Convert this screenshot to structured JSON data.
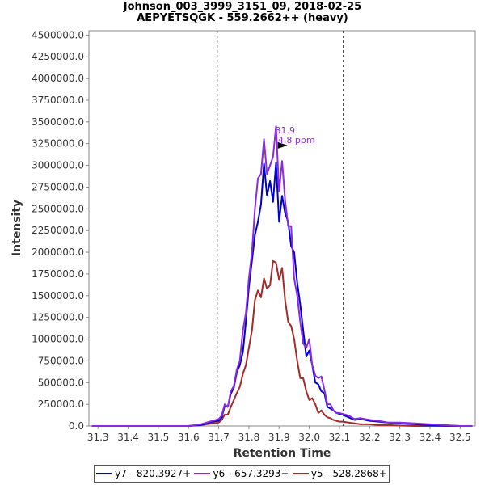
{
  "chart_data": {
    "type": "line",
    "title_line1": "Johnson_003_3999_3151_09, 2018-02-25",
    "title_line2": "AEPYETSQGK - 559.2662++ (heavy)",
    "xlabel": "Retention Time",
    "ylabel": "Intensity",
    "xlim": [
      31.27,
      32.55
    ],
    "ylim": [
      0,
      4550000
    ],
    "x_ticks": [
      31.3,
      31.4,
      31.5,
      31.6,
      31.7,
      31.8,
      31.9,
      32.0,
      32.1,
      32.2,
      32.3,
      32.4,
      32.5
    ],
    "x_tick_labels": [
      "31.3",
      "31.4",
      "31.5",
      "31.6",
      "31.7",
      "31.8",
      "31.9",
      "32.0",
      "32.1",
      "32.2",
      "32.3",
      "32.4",
      "32.5"
    ],
    "y_ticks": [
      0,
      250000,
      500000,
      750000,
      1000000,
      1250000,
      1500000,
      1750000,
      2000000,
      2250000,
      2500000,
      2750000,
      3000000,
      3250000,
      3500000,
      3750000,
      4000000,
      4250000,
      4500000
    ],
    "y_tick_labels": [
      "0.0",
      "250000.0",
      "500000.0",
      "750000.0",
      "1000000.0",
      "1250000.0",
      "1500000.0",
      "1750000.0",
      "2000000.0",
      "2250000.0",
      "2500000.0",
      "2750000.0",
      "3000000.0",
      "3250000.0",
      "3500000.0",
      "3750000.0",
      "4000000.0",
      "4250000.0",
      "4500000.0"
    ],
    "boundaries": [
      31.695,
      32.113
    ],
    "annotation": {
      "label1": "31.9",
      "label2": "4.8 ppm",
      "x": 31.92,
      "y": 3230000,
      "color": "#8a2be2"
    },
    "grid": false,
    "legend_position": "bottom",
    "series": [
      {
        "name": "y7 - 820.3927+",
        "color": "#0000cc",
        "x": [
          31.28,
          31.4,
          31.5,
          31.6,
          31.64,
          31.66,
          31.68,
          31.7,
          31.71,
          31.72,
          31.73,
          31.74,
          31.75,
          31.76,
          31.77,
          31.78,
          31.79,
          31.8,
          31.81,
          31.82,
          31.83,
          31.84,
          31.85,
          31.86,
          31.87,
          31.88,
          31.89,
          31.9,
          31.91,
          31.92,
          31.93,
          31.94,
          31.95,
          31.96,
          31.97,
          31.98,
          31.99,
          32.0,
          32.01,
          32.02,
          32.03,
          32.04,
          32.05,
          32.06,
          32.07,
          32.08,
          32.09,
          32.1,
          32.11,
          32.13,
          32.15,
          32.17,
          32.2,
          32.23,
          32.26,
          32.3,
          32.35,
          32.4,
          32.45,
          32.5,
          32.54
        ],
        "y": [
          0,
          0,
          0,
          0,
          10000,
          30000,
          50000,
          60000,
          100000,
          230000,
          220000,
          370000,
          440000,
          620000,
          700000,
          850000,
          1200000,
          1600000,
          1900000,
          2200000,
          2350000,
          2550000,
          3020000,
          2650000,
          2820000,
          2580000,
          3030000,
          2350000,
          2650000,
          2450000,
          2350000,
          2070000,
          2000000,
          1650000,
          1400000,
          1100000,
          800000,
          870000,
          700000,
          500000,
          480000,
          400000,
          380000,
          220000,
          200000,
          180000,
          150000,
          140000,
          130000,
          100000,
          70000,
          80000,
          60000,
          50000,
          40000,
          30000,
          20000,
          10000,
          5000,
          0,
          0
        ]
      },
      {
        "name": "y6 - 657.3293+",
        "color": "#8a2be2",
        "x": [
          31.28,
          31.4,
          31.5,
          31.6,
          31.64,
          31.66,
          31.68,
          31.7,
          31.71,
          31.72,
          31.73,
          31.74,
          31.75,
          31.76,
          31.77,
          31.78,
          31.79,
          31.8,
          31.81,
          31.82,
          31.83,
          31.84,
          31.85,
          31.86,
          31.87,
          31.88,
          31.89,
          31.9,
          31.91,
          31.92,
          31.93,
          31.94,
          31.95,
          31.96,
          31.97,
          31.98,
          31.99,
          32.0,
          32.01,
          32.02,
          32.03,
          32.04,
          32.05,
          32.06,
          32.07,
          32.08,
          32.09,
          32.1,
          32.11,
          32.13,
          32.15,
          32.17,
          32.2,
          32.23,
          32.26,
          32.3,
          32.35,
          32.4,
          32.45,
          32.5,
          32.54
        ],
        "y": [
          0,
          0,
          0,
          0,
          20000,
          40000,
          60000,
          80000,
          120000,
          250000,
          220000,
          400000,
          460000,
          650000,
          750000,
          1100000,
          1300000,
          1700000,
          2000000,
          2500000,
          2850000,
          2900000,
          3300000,
          2900000,
          3000000,
          3100000,
          3450000,
          2700000,
          3050000,
          2600000,
          2300000,
          2300000,
          1700000,
          1500000,
          1200000,
          950000,
          900000,
          1000000,
          700000,
          580000,
          550000,
          570000,
          420000,
          250000,
          250000,
          180000,
          150000,
          150000,
          140000,
          120000,
          80000,
          90000,
          70000,
          60000,
          40000,
          40000,
          30000,
          20000,
          10000,
          0,
          0
        ]
      },
      {
        "name": "y5 - 528.2868+",
        "color": "#a52a2a",
        "x": [
          31.28,
          31.4,
          31.5,
          31.6,
          31.64,
          31.66,
          31.68,
          31.7,
          31.71,
          31.72,
          31.73,
          31.74,
          31.75,
          31.76,
          31.77,
          31.78,
          31.79,
          31.8,
          31.81,
          31.82,
          31.83,
          31.84,
          31.85,
          31.86,
          31.87,
          31.88,
          31.89,
          31.9,
          31.91,
          31.92,
          31.93,
          31.94,
          31.95,
          31.96,
          31.97,
          31.98,
          31.99,
          32.0,
          32.01,
          32.02,
          32.03,
          32.04,
          32.05,
          32.06,
          32.07,
          32.08,
          32.09,
          32.1,
          32.11,
          32.13,
          32.15,
          32.17,
          32.2,
          32.23,
          32.26,
          32.3,
          32.35,
          32.4,
          32.45,
          32.5,
          32.54
        ],
        "y": [
          0,
          0,
          0,
          0,
          10000,
          20000,
          30000,
          40000,
          70000,
          130000,
          130000,
          220000,
          300000,
          380000,
          450000,
          600000,
          700000,
          900000,
          1100000,
          1450000,
          1560000,
          1480000,
          1700000,
          1580000,
          1620000,
          1900000,
          1880000,
          1680000,
          1820000,
          1450000,
          1200000,
          1150000,
          1000000,
          750000,
          550000,
          550000,
          400000,
          300000,
          320000,
          250000,
          150000,
          180000,
          130000,
          100000,
          90000,
          70000,
          60000,
          50000,
          50000,
          40000,
          30000,
          20000,
          20000,
          10000,
          10000,
          5000,
          0,
          0,
          0,
          0,
          0
        ]
      }
    ]
  }
}
